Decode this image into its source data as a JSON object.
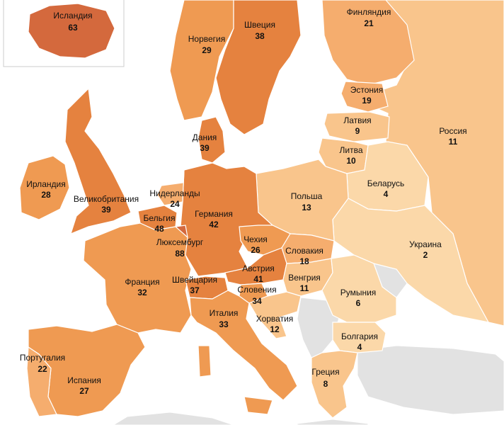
{
  "colors": {
    "background": "#ffffff",
    "sea": "#ffffff",
    "no_data": "#e0e0e0",
    "scale": [
      "#fbd8a9",
      "#f9c58c",
      "#f5ad6e",
      "#ef9a52",
      "#e5823f",
      "#d4693d"
    ]
  },
  "regions": [
    {
      "id": "iceland",
      "name": "Исландия",
      "value": 63
    },
    {
      "id": "finland",
      "name": "Финляндия",
      "value": 21
    },
    {
      "id": "sweden",
      "name": "Швеция",
      "value": 38
    },
    {
      "id": "norway",
      "name": "Норвегия",
      "value": 29
    },
    {
      "id": "estonia",
      "name": "Эстония",
      "value": 19
    },
    {
      "id": "latvia",
      "name": "Латвия",
      "value": 9
    },
    {
      "id": "lithuania",
      "name": "Литва",
      "value": 10
    },
    {
      "id": "russia",
      "name": "Россия",
      "value": 11
    },
    {
      "id": "denmark",
      "name": "Дания",
      "value": 39
    },
    {
      "id": "belarus",
      "name": "Беларусь",
      "value": 4
    },
    {
      "id": "ireland",
      "name": "Ирландия",
      "value": 28
    },
    {
      "id": "netherlands",
      "name": "Нидерланды",
      "value": 24
    },
    {
      "id": "united-kingdom",
      "name": "Великобритания",
      "value": 39
    },
    {
      "id": "germany",
      "name": "Германия",
      "value": 42
    },
    {
      "id": "poland",
      "name": "Польша",
      "value": 13
    },
    {
      "id": "belgium",
      "name": "Бельгия",
      "value": 48
    },
    {
      "id": "luxembourg",
      "name": "Люксембург",
      "value": 88
    },
    {
      "id": "czechia",
      "name": "Чехия",
      "value": 26
    },
    {
      "id": "slovakia",
      "name": "Словакия",
      "value": 18
    },
    {
      "id": "ukraine",
      "name": "Украина",
      "value": 2
    },
    {
      "id": "austria",
      "name": "Австрия",
      "value": 41
    },
    {
      "id": "france",
      "name": "Франция",
      "value": 32
    },
    {
      "id": "switzerland",
      "name": "Швейцария",
      "value": 37
    },
    {
      "id": "hungary",
      "name": "Венгрия",
      "value": 11
    },
    {
      "id": "slovenia",
      "name": "Словения",
      "value": 34
    },
    {
      "id": "romania",
      "name": "Румыния",
      "value": 6
    },
    {
      "id": "italy",
      "name": "Италия",
      "value": 33
    },
    {
      "id": "croatia",
      "name": "Хорватия",
      "value": 12
    },
    {
      "id": "bulgaria",
      "name": "Болгария",
      "value": 4
    },
    {
      "id": "portugal",
      "name": "Португалия",
      "value": 22
    },
    {
      "id": "spain",
      "name": "Испания",
      "value": 27
    },
    {
      "id": "greece",
      "name": "Греция",
      "value": 8
    }
  ]
}
